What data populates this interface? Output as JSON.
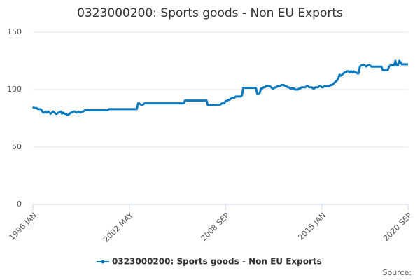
{
  "chart_data": {
    "type": "line",
    "title": "0323000200: Sports goods - Non EU Exports",
    "source": "Source:",
    "categories": [
      "1996 JAN",
      null,
      null,
      null,
      null,
      null,
      null,
      null,
      null,
      null,
      null,
      null,
      null,
      null,
      null,
      null,
      null,
      null,
      null,
      null,
      null,
      null,
      null,
      null,
      null,
      null,
      null,
      null,
      null,
      null,
      null,
      null,
      null,
      null,
      null,
      null,
      null,
      null,
      null,
      null,
      null,
      null,
      null,
      null,
      null,
      null,
      null,
      null,
      null,
      null,
      null,
      null,
      null,
      null,
      null,
      null,
      null,
      null,
      null,
      null,
      null,
      null,
      null,
      null,
      null,
      null,
      null,
      null,
      null,
      null,
      null,
      null,
      null,
      null,
      null,
      null,
      "2002 MAY",
      null,
      null,
      null,
      null,
      null,
      null,
      null,
      null,
      null,
      null,
      null,
      null,
      null,
      null,
      null,
      null,
      null,
      null,
      null,
      null,
      null,
      null,
      null,
      null,
      null,
      null,
      null,
      null,
      null,
      null,
      null,
      null,
      null,
      null,
      null,
      null,
      null,
      null,
      null,
      null,
      null,
      null,
      null,
      null,
      null,
      null,
      null,
      null,
      null,
      null,
      null,
      null,
      null,
      null,
      null,
      null,
      null,
      null,
      null,
      null,
      null,
      null,
      null,
      null,
      null,
      null,
      null,
      null,
      null,
      null,
      null,
      null,
      null,
      null,
      null,
      "2008 SEP",
      null,
      null,
      null,
      null,
      null,
      null,
      null,
      null,
      null,
      null,
      null,
      null,
      null,
      null,
      null,
      null,
      null,
      null,
      null,
      null,
      null,
      null,
      null,
      null,
      null,
      null,
      null,
      null,
      null,
      null,
      null,
      null,
      null,
      null,
      null,
      null,
      null,
      null,
      null,
      null,
      null,
      null,
      null,
      null,
      null,
      null,
      null,
      null,
      null,
      null,
      null,
      null,
      null,
      null,
      null,
      null,
      null,
      null,
      null,
      null,
      null,
      null,
      null,
      null,
      null,
      null,
      null,
      null,
      null,
      null,
      null,
      null,
      null,
      null,
      null,
      "2015 JAN",
      null,
      null,
      null,
      null,
      null,
      null,
      null,
      null,
      null,
      null,
      null,
      null,
      null,
      null,
      null,
      null,
      null,
      null,
      null,
      null,
      null,
      null,
      null,
      null,
      null,
      null,
      null,
      null,
      null,
      null,
      null,
      null,
      null,
      null,
      null,
      null,
      null,
      null,
      null,
      null,
      null,
      null,
      null,
      null,
      null,
      null,
      null,
      null,
      null,
      null,
      null,
      null,
      null,
      null,
      null,
      null,
      null,
      null,
      null,
      null,
      null,
      null,
      null,
      null,
      null,
      null,
      null,
      "2020 SEP"
    ],
    "series": [
      {
        "name": "0323000200: Sports goods - Non EU Exports",
        "color": "#0a7abf",
        "values": [
          85,
          84,
          84,
          84,
          83,
          83,
          83,
          82,
          80,
          80,
          81,
          80,
          81,
          80,
          79,
          80,
          81,
          80,
          79,
          79,
          80,
          80,
          81,
          79,
          80,
          79,
          79,
          78,
          78,
          79,
          80,
          80,
          81,
          81,
          80,
          80,
          81,
          80,
          80,
          81,
          81,
          82,
          82,
          82,
          82,
          82,
          82,
          82,
          82,
          82,
          82,
          82,
          82,
          82,
          82,
          82,
          82,
          82,
          82,
          82,
          83,
          83,
          83,
          83,
          83,
          83,
          83,
          83,
          83,
          83,
          83,
          83,
          83,
          83,
          83,
          83,
          83,
          83,
          83,
          83,
          83,
          83,
          83,
          88,
          88,
          87,
          87,
          87,
          88,
          88,
          88,
          88,
          88,
          88,
          88,
          88,
          88,
          88,
          88,
          88,
          88,
          88,
          88,
          88,
          88,
          88,
          88,
          88,
          88,
          88,
          88,
          88,
          88,
          88,
          88,
          88,
          88,
          88,
          88,
          88,
          90.5,
          90.5,
          90.5,
          90.5,
          90.5,
          90.5,
          90.5,
          90.5,
          90.5,
          90.5,
          90.5,
          90.5,
          90.5,
          90.5,
          90.5,
          90.5,
          90.5,
          90.5,
          86.5,
          86.5,
          86.5,
          86.5,
          86.5,
          86.5,
          86.5,
          87,
          87,
          87,
          87,
          88,
          88,
          88,
          90,
          90,
          91,
          91,
          92,
          93,
          93,
          93,
          94,
          94,
          94,
          94,
          94,
          95,
          101.5,
          101.5,
          101.5,
          101.5,
          101.5,
          101.5,
          101.5,
          101.5,
          101.5,
          101.5,
          101.5,
          96,
          96,
          97,
          101,
          101,
          102,
          102,
          103,
          103,
          103,
          103,
          102,
          101,
          101,
          102,
          102,
          103,
          103,
          103,
          104,
          104,
          104,
          103,
          103,
          102,
          102,
          101,
          101,
          101,
          101,
          100,
          100,
          100,
          101,
          101,
          102,
          102,
          102,
          102,
          103,
          103,
          102,
          102,
          102,
          101,
          101,
          102,
          102,
          102,
          103,
          103,
          102,
          102,
          103,
          103,
          103,
          103,
          103,
          104,
          104,
          105,
          106,
          107,
          108,
          110,
          113,
          112,
          113,
          114,
          115,
          115,
          116,
          116,
          115,
          116,
          115,
          116,
          115,
          115,
          114,
          114,
          120,
          121,
          121,
          121,
          121,
          120,
          121,
          121,
          121,
          120,
          120,
          120,
          120,
          120,
          120,
          120,
          120,
          120,
          117,
          117,
          117,
          117,
          117,
          120,
          121,
          121,
          121,
          121,
          125,
          121,
          121,
          125,
          124,
          122,
          122,
          122,
          122,
          122,
          122
        ]
      }
    ],
    "ylim": [
      0,
      150
    ],
    "yticks": [
      0,
      50,
      100,
      150
    ],
    "grid": true,
    "legend": "bottom"
  }
}
